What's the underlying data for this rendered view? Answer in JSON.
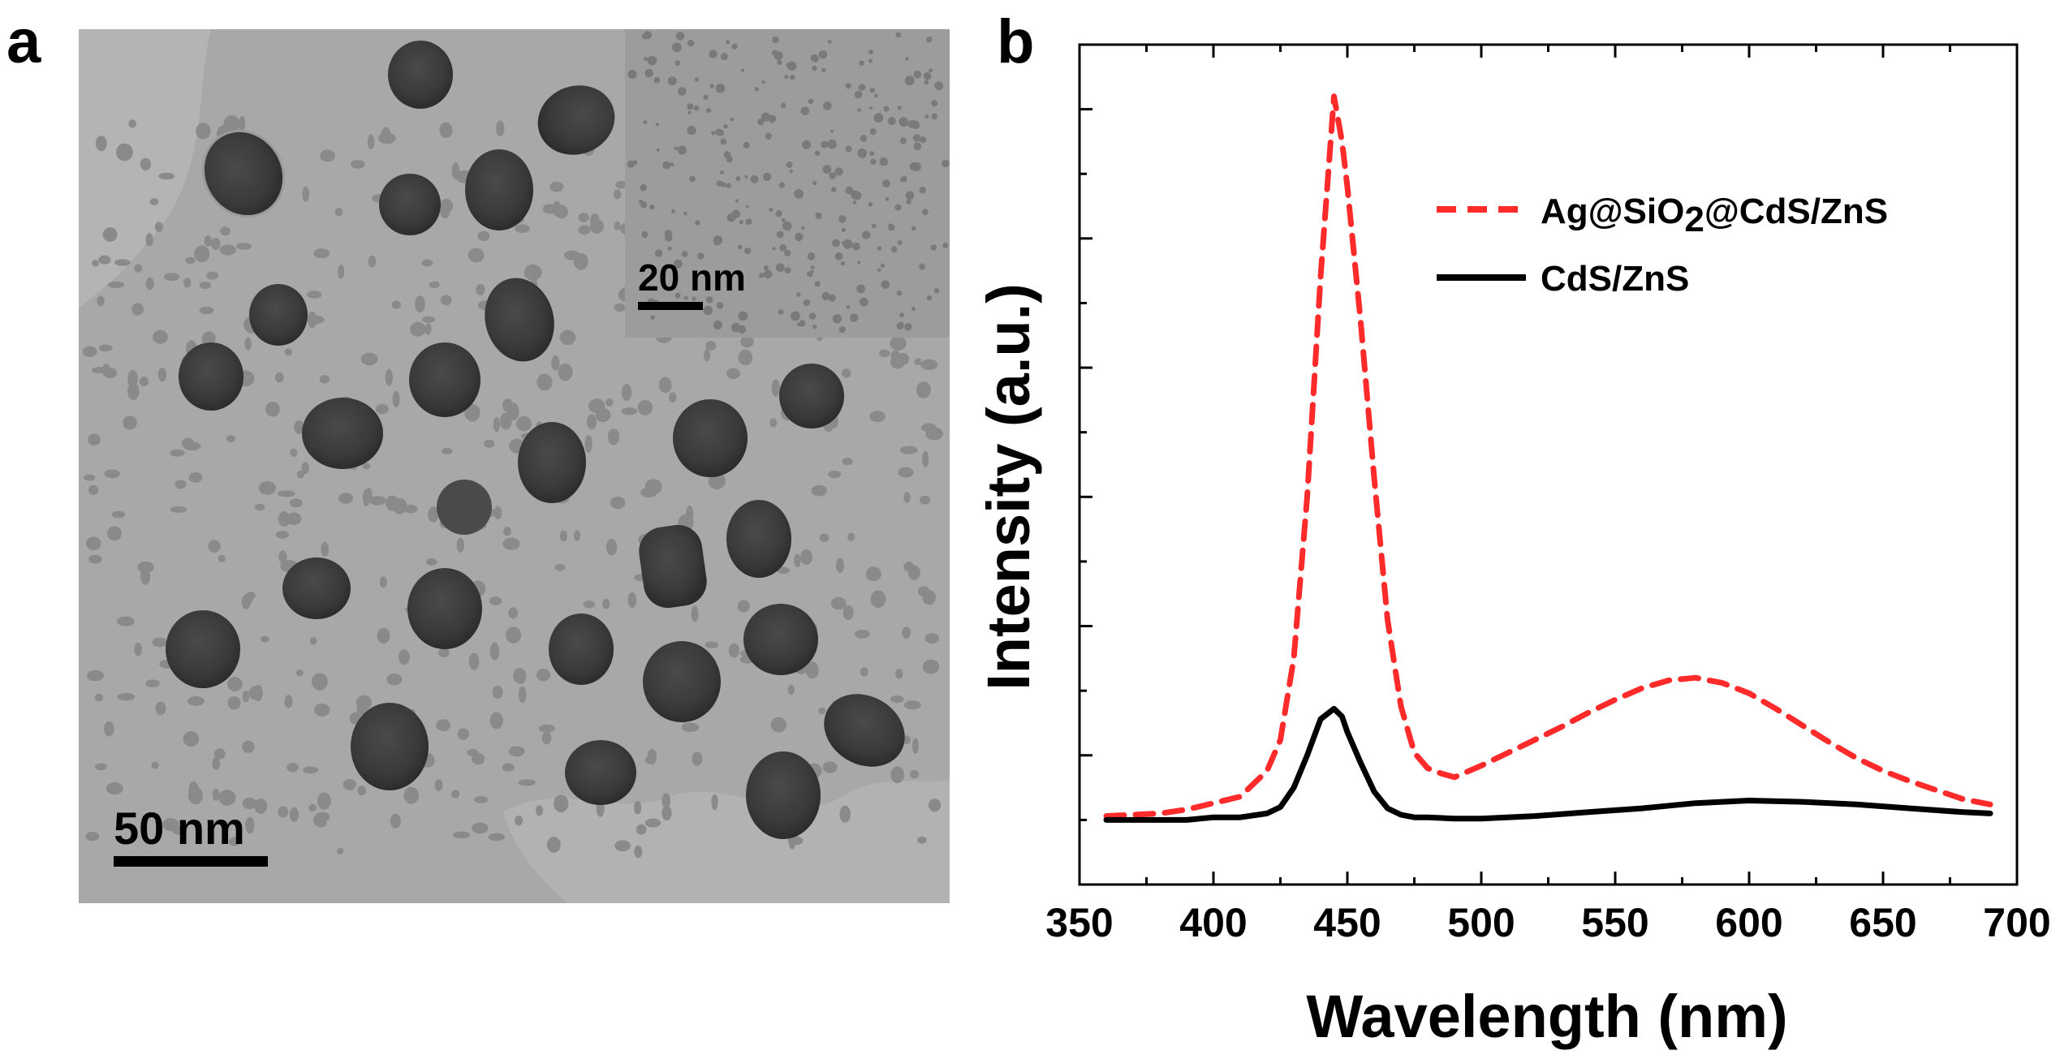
{
  "panels": {
    "a_label": "a",
    "b_label": "b"
  },
  "tem_image": {
    "scale_bar_main": "50 nm",
    "scale_bar_inset": "20 nm"
  },
  "chart_data": {
    "type": "line",
    "title": "",
    "xlabel": "Wavelength (nm)",
    "ylabel": "Intensity (a.u.)",
    "xlim": [
      350,
      700
    ],
    "ylim": [
      -0.5,
      6.0
    ],
    "x_ticks": [
      "350",
      "400",
      "450",
      "500",
      "550",
      "600",
      "650",
      "700"
    ],
    "y_tick_labels": "none",
    "grid": false,
    "legend_position": "top-right",
    "series": [
      {
        "name": "Ag@SiO2@CdS/ZnS",
        "legend_main": "Ag@SiO",
        "legend_sub": "2",
        "legend_tail": "@CdS/ZnS",
        "color": "#ff2a2a",
        "dash": "dashed",
        "x": [
          360,
          380,
          390,
          400,
          410,
          420,
          425,
          430,
          435,
          440,
          445,
          448,
          450,
          455,
          460,
          465,
          470,
          475,
          480,
          485,
          490,
          500,
          510,
          520,
          530,
          540,
          550,
          560,
          570,
          580,
          590,
          600,
          610,
          620,
          630,
          640,
          650,
          660,
          670,
          680,
          690
        ],
        "values": [
          0.03,
          0.05,
          0.08,
          0.13,
          0.18,
          0.38,
          0.62,
          1.25,
          2.5,
          4.2,
          5.6,
          5.25,
          4.9,
          3.85,
          2.65,
          1.55,
          0.88,
          0.52,
          0.4,
          0.36,
          0.33,
          0.42,
          0.52,
          0.62,
          0.72,
          0.83,
          0.93,
          1.02,
          1.08,
          1.1,
          1.06,
          0.98,
          0.86,
          0.73,
          0.6,
          0.48,
          0.38,
          0.3,
          0.23,
          0.16,
          0.12
        ]
      },
      {
        "name": "CdS/ZnS",
        "color": "#000000",
        "dash": "solid",
        "x": [
          360,
          380,
          390,
          400,
          410,
          420,
          425,
          430,
          435,
          440,
          445,
          448,
          450,
          455,
          460,
          465,
          470,
          475,
          480,
          490,
          500,
          520,
          540,
          560,
          580,
          600,
          620,
          640,
          660,
          680,
          690
        ],
        "values": [
          0.0,
          0.0,
          0.0,
          0.02,
          0.02,
          0.05,
          0.1,
          0.25,
          0.5,
          0.78,
          0.86,
          0.8,
          0.68,
          0.44,
          0.22,
          0.09,
          0.04,
          0.02,
          0.02,
          0.01,
          0.01,
          0.03,
          0.06,
          0.09,
          0.13,
          0.15,
          0.14,
          0.12,
          0.09,
          0.06,
          0.05
        ]
      }
    ]
  }
}
